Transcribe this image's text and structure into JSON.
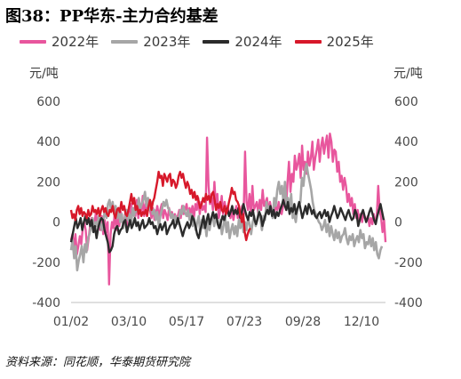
{
  "title": "图38：PP华东-主力合约基差",
  "left_unit": "元/吨",
  "right_unit": "元/吨",
  "source": "资料来源：同花顺，华泰期货研究院",
  "chart_data": {
    "type": "line",
    "x_ticks": [
      "01/02",
      "03/10",
      "05/17",
      "07/23",
      "09/28",
      "12/10"
    ],
    "y_ticks": [
      "600",
      "400",
      "200",
      "0",
      "-200",
      "-400"
    ],
    "y_right_ticks": [
      "600",
      "400",
      "200",
      "0",
      "-200",
      "-400"
    ],
    "ylim": [
      -400,
      600
    ],
    "series": [
      {
        "name": "2022年",
        "color": "#e8569d",
        "values": [
          -90,
          -60,
          -140,
          -60,
          -160,
          -120,
          -70,
          -110,
          -30,
          0,
          -40,
          -140,
          -80,
          -20,
          20,
          -30,
          -10,
          50,
          -20,
          10,
          -40,
          30,
          -60,
          10,
          -50,
          0,
          -310,
          -60,
          0,
          -30,
          60,
          -40,
          20,
          -20,
          50,
          0,
          -10,
          40,
          -30,
          60,
          10,
          90,
          40,
          70,
          30,
          110,
          20,
          80,
          50,
          130,
          30,
          90,
          40,
          110,
          60,
          20,
          70,
          10,
          40,
          80,
          30,
          60,
          90,
          20,
          60,
          40,
          10,
          70,
          30,
          50,
          20,
          40,
          10,
          30,
          60,
          20,
          80,
          40,
          60,
          90,
          30,
          70,
          40,
          80,
          20,
          90,
          60,
          120,
          40,
          100,
          60,
          80,
          50,
          420,
          180,
          90,
          120,
          60,
          200,
          80,
          140,
          20,
          60,
          130,
          40,
          100,
          60,
          80,
          50,
          20,
          60,
          10,
          50,
          80,
          20,
          60,
          40,
          80,
          30,
          350,
          100,
          60,
          140,
          40,
          180,
          60,
          80,
          100,
          40,
          110,
          60,
          160,
          80,
          100,
          120,
          40,
          100,
          60,
          30,
          50,
          80,
          60,
          100,
          50,
          40,
          80,
          120,
          60,
          200,
          300,
          150,
          240,
          200,
          330,
          260,
          290,
          340,
          220,
          380,
          260,
          300,
          240,
          350,
          280,
          320,
          400,
          260,
          320,
          360,
          410,
          300,
          380,
          420,
          340,
          390,
          430,
          320,
          440,
          400,
          300,
          360,
          350,
          250,
          300,
          200,
          230,
          160,
          220,
          180,
          100,
          140,
          80,
          120,
          40,
          90,
          20,
          60,
          10,
          40,
          0,
          50,
          20,
          10,
          30,
          -20,
          20,
          -10,
          40,
          0,
          20,
          180,
          60,
          20,
          -50,
          10,
          -100
        ]
      },
      {
        "name": "2023年",
        "color": "#a6a6a6",
        "values": [
          -140,
          -90,
          -180,
          -120,
          -240,
          -190,
          -160,
          -120,
          -200,
          -110,
          -150,
          -80,
          -60,
          -20,
          20,
          -50,
          0,
          -20,
          30,
          -10,
          -40,
          10,
          60,
          20,
          90,
          110,
          60,
          100,
          40,
          80,
          20,
          60,
          0,
          40,
          -30,
          20,
          60,
          10,
          40,
          -20,
          70,
          30,
          80,
          50,
          120,
          70,
          90,
          110,
          150,
          80,
          120,
          60,
          100,
          40,
          60,
          10,
          50,
          -20,
          30,
          60,
          100,
          80,
          110,
          70,
          60,
          20,
          40,
          0,
          30,
          -10,
          20,
          60,
          40,
          80,
          50,
          30,
          60,
          10,
          40,
          -20,
          20,
          -40,
          0,
          30,
          -60,
          10,
          -30,
          0,
          -70,
          20,
          -40,
          10,
          40,
          -20,
          20,
          0,
          -30,
          10,
          -60,
          -20,
          30,
          -50,
          0,
          -80,
          -40,
          -10,
          -60,
          -20,
          -70,
          10,
          -30,
          20,
          -50,
          0,
          -40,
          20,
          -10,
          -60,
          0,
          30,
          -20,
          10,
          60,
          20,
          -40,
          30,
          10,
          100,
          40,
          80,
          60,
          20,
          120,
          80,
          160,
          200,
          140,
          180,
          100,
          200,
          80,
          120,
          60,
          140,
          20,
          40,
          0,
          60,
          80,
          100,
          220,
          180,
          260,
          290,
          240,
          200,
          160,
          100,
          60,
          40,
          20,
          0,
          -10,
          -40,
          -20,
          10,
          -50,
          -10,
          -70,
          -20,
          -60,
          -90,
          -40,
          -80,
          -50,
          -100,
          -70,
          -60,
          -30,
          -80,
          -110,
          -70,
          -90,
          -60,
          -120,
          -90,
          -70,
          -100,
          -40,
          -80,
          -60,
          -130,
          -100,
          -110,
          -70,
          -120,
          -80,
          -140,
          -100,
          -160,
          -180,
          -140,
          -120
        ]
      },
      {
        "name": "2024年",
        "color": "#2b2b2b",
        "values": [
          -100,
          -60,
          -20,
          20,
          -30,
          -10,
          20,
          -40,
          0,
          30,
          -10,
          20,
          -20,
          10,
          -50,
          -20,
          -80,
          -30,
          0,
          20,
          10,
          -40,
          -70,
          -100,
          -150,
          -140,
          -120,
          -60,
          -30,
          -20,
          -60,
          -40,
          -30,
          0,
          10,
          -50,
          -20,
          10,
          -30,
          -10,
          20,
          -20,
          0,
          -40,
          -10,
          10,
          -30,
          -20,
          -10,
          20,
          -10,
          0,
          -30,
          -20,
          -60,
          -30,
          -10,
          -40,
          -20,
          0,
          -60,
          -40,
          -20,
          -10,
          10,
          -30,
          -10,
          20,
          -10,
          -40,
          -70,
          -40,
          -20,
          0,
          -30,
          -10,
          30,
          10,
          -20,
          -60,
          -80,
          -40,
          -10,
          30,
          -30,
          10,
          40,
          -10,
          20,
          50,
          20,
          40,
          -10,
          -30,
          0,
          30,
          10,
          40,
          70,
          30,
          50,
          80,
          40,
          60,
          40,
          70,
          20,
          50,
          90,
          60,
          30,
          10,
          50,
          30,
          60,
          10,
          -10,
          20,
          50,
          30,
          -20,
          10,
          40,
          60,
          40,
          80,
          30,
          60,
          20,
          50,
          30,
          60,
          80,
          110,
          80,
          60,
          100,
          40,
          70,
          50,
          90,
          40,
          70,
          100,
          60,
          20,
          50,
          80,
          40,
          90,
          70,
          40,
          60,
          30,
          20,
          40,
          50,
          20,
          40,
          60,
          30,
          50,
          0,
          30,
          50,
          80,
          50,
          20,
          40,
          70,
          50,
          30,
          10,
          40,
          60,
          30,
          10,
          20,
          60,
          40,
          -20,
          10,
          40,
          60,
          30,
          0,
          20,
          50,
          70,
          40,
          10,
          -10,
          30,
          60,
          90,
          50,
          10
        ]
      },
      {
        "name": "2025年",
        "color": "#d7182a",
        "values": [
          60,
          20,
          40,
          10,
          60,
          80,
          40,
          70,
          30,
          50,
          40,
          20,
          60,
          30,
          40,
          80,
          50,
          60,
          40,
          70,
          30,
          60,
          80,
          50,
          70,
          40,
          30,
          60,
          50,
          80,
          40,
          20,
          60,
          70,
          50,
          100,
          60,
          80,
          40,
          30,
          60,
          100,
          140,
          90,
          120,
          60,
          80,
          40,
          60,
          30,
          50,
          40,
          60,
          30,
          80,
          110,
          60,
          100,
          120,
          160,
          200,
          250,
          220,
          230,
          180,
          240,
          220,
          200,
          230,
          240,
          180,
          210,
          200,
          170,
          190,
          230,
          250,
          220,
          240,
          200,
          170,
          200,
          180,
          140,
          160,
          120,
          150,
          110,
          130,
          100,
          70,
          90,
          120,
          100,
          140,
          110,
          130,
          100,
          140,
          150,
          110,
          60,
          90,
          70,
          100,
          60,
          50,
          80,
          40,
          60,
          100,
          130,
          170,
          140,
          150,
          110,
          100,
          80,
          30,
          0,
          40,
          -50,
          -90,
          -60,
          -40,
          -30
        ]
      }
    ]
  }
}
